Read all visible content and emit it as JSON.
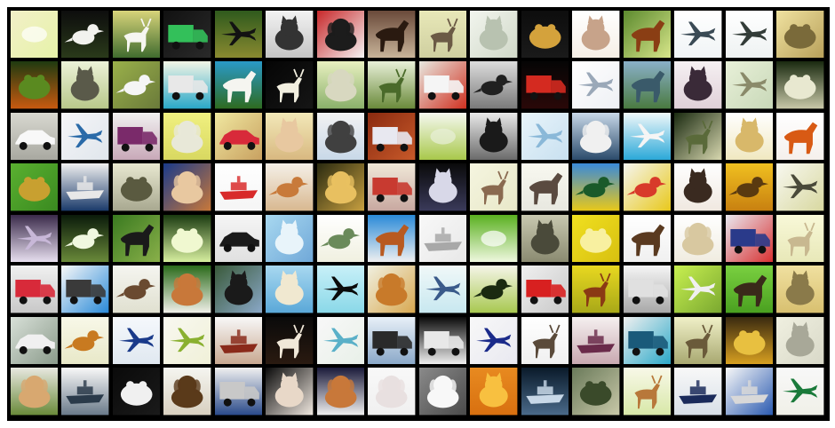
{
  "figure": {
    "grid_rows": 8,
    "grid_cols": 16,
    "border_color": "#000000",
    "background_color": "#ffffff"
  },
  "tiles": [
    {
      "subject": "landscape",
      "bg": "#f2f0c8",
      "bg2": "#e6f2a8",
      "fg": "#ffffff"
    },
    {
      "subject": "bird",
      "bg": "#0d0d0d",
      "bg2": "#2a3a1a",
      "fg": "#f2f2ee"
    },
    {
      "subject": "deer",
      "bg": "#d8d47a",
      "bg2": "#3f6b2e",
      "fg": "#f6f6f0"
    },
    {
      "subject": "truck",
      "bg": "#111111",
      "bg2": "#2a2a2a",
      "fg": "#33c05a"
    },
    {
      "subject": "airplane",
      "bg": "#2f5a1d",
      "bg2": "#8a8a30",
      "fg": "#121212"
    },
    {
      "subject": "cat",
      "bg": "#f2f2f2",
      "bg2": "#c4c4c4",
      "fg": "#333333"
    },
    {
      "subject": "dog",
      "bg": "#c8282a",
      "bg2": "#f5f5f5",
      "fg": "#1c1c1c"
    },
    {
      "subject": "horse",
      "bg": "#6a4a3a",
      "bg2": "#c9b59a",
      "fg": "#2a1a10"
    },
    {
      "subject": "deer",
      "bg": "#e8e8b8",
      "bg2": "#cfcfa0",
      "fg": "#6b5a45"
    },
    {
      "subject": "cat",
      "bg": "#f2f5ee",
      "bg2": "#d0d8c8",
      "fg": "#b8c2b0"
    },
    {
      "subject": "frog",
      "bg": "#0d0d0d",
      "bg2": "#1a1a1a",
      "fg": "#d4a23c"
    },
    {
      "subject": "cat",
      "bg": "#ffffff",
      "bg2": "#f6efe6",
      "fg": "#c7a38a"
    },
    {
      "subject": "horse",
      "bg": "#5c8a2e",
      "bg2": "#d8e68a",
      "fg": "#8a3e14"
    },
    {
      "subject": "airplane",
      "bg": "#ffffff",
      "bg2": "#f0f4f6",
      "fg": "#3a4a55"
    },
    {
      "subject": "airplane",
      "bg": "#ffffff",
      "bg2": "#eef2f2",
      "fg": "#333c38"
    },
    {
      "subject": "frog",
      "bg": "#f0e2a0",
      "bg2": "#b8a05a",
      "fg": "#7a6a3a"
    },
    {
      "subject": "frog",
      "bg": "#1f3a10",
      "bg2": "#c85a10",
      "fg": "#5a8a20"
    },
    {
      "subject": "cat",
      "bg": "#ecf2d8",
      "bg2": "#b8c88a",
      "fg": "#5a5a4a"
    },
    {
      "subject": "bird",
      "bg": "#9ab04a",
      "bg2": "#6a7a3a",
      "fg": "#f5f5f5"
    },
    {
      "subject": "truck",
      "bg": "#f2f5e6",
      "bg2": "#2aa8c8",
      "fg": "#e8e8e8"
    },
    {
      "subject": "horse",
      "bg": "#2a9ac8",
      "bg2": "#2e6b20",
      "fg": "#f5f5f0"
    },
    {
      "subject": "deer",
      "bg": "#050505",
      "bg2": "#151515",
      "fg": "#f2efe0"
    },
    {
      "subject": "dog",
      "bg": "#e8f0c0",
      "bg2": "#8ab06a",
      "fg": "#d8d8c0"
    },
    {
      "subject": "deer",
      "bg": "#e8f0d8",
      "bg2": "#6a8a3a",
      "fg": "#4a6a2a"
    },
    {
      "subject": "truck",
      "bg": "#e8e8e0",
      "bg2": "#d03020",
      "fg": "#f5f5f5"
    },
    {
      "subject": "bird",
      "bg": "#dcdcdc",
      "bg2": "#7a7a7a",
      "fg": "#202020"
    },
    {
      "subject": "truck",
      "bg": "#050505",
      "bg2": "#2a0808",
      "fg": "#d42a20"
    },
    {
      "subject": "airplane",
      "bg": "#ffffff",
      "bg2": "#eef0f4",
      "fg": "#9aa8b8"
    },
    {
      "subject": "horse",
      "bg": "#8ab0c8",
      "bg2": "#4a7a40",
      "fg": "#3a5a6a"
    },
    {
      "subject": "cat",
      "bg": "#f5f0f2",
      "bg2": "#e0d0d8",
      "fg": "#3a2a38"
    },
    {
      "subject": "airplane",
      "bg": "#e8f0d8",
      "bg2": "#c8d8b8",
      "fg": "#8a8a6a"
    },
    {
      "subject": "frog",
      "bg": "#1a2a10",
      "bg2": "#c8c8a8",
      "fg": "#e8e8d0"
    },
    {
      "subject": "automobile",
      "bg": "#d8d8d0",
      "bg2": "#a8a8a0",
      "fg": "#f8f8f8"
    },
    {
      "subject": "airplane",
      "bg": "#f5f5f8",
      "bg2": "#e0e6ec",
      "fg": "#2a6aa8"
    },
    {
      "subject": "truck",
      "bg": "#f0f0f0",
      "bg2": "#c8a8b8",
      "fg": "#7a2a6a"
    },
    {
      "subject": "dog",
      "bg": "#f0f080",
      "bg2": "#d8d860",
      "fg": "#e8e8d8"
    },
    {
      "subject": "automobile",
      "bg": "#f0e8a0",
      "bg2": "#c8a060",
      "fg": "#d82a3a"
    },
    {
      "subject": "cat",
      "bg": "#f2e8b8",
      "bg2": "#d8b880",
      "fg": "#e8c8a0"
    },
    {
      "subject": "dog",
      "bg": "#f2f2f2",
      "bg2": "#c8d8e8",
      "fg": "#404040"
    },
    {
      "subject": "truck",
      "bg": "#8a2a10",
      "bg2": "#c85a2a",
      "fg": "#e8e8f0"
    },
    {
      "subject": "landscape",
      "bg": "#f5f8f0",
      "bg2": "#a8c84a",
      "fg": "#e8f0d8"
    },
    {
      "subject": "cat",
      "bg": "#e8e8e8",
      "bg2": "#6a6a6a",
      "fg": "#1a1a1a"
    },
    {
      "subject": "airplane",
      "bg": "#e8f4fa",
      "bg2": "#c8e0f0",
      "fg": "#8ab8d8"
    },
    {
      "subject": "dog",
      "bg": "#c8d8e8",
      "bg2": "#2a4a6a",
      "fg": "#f0f0f0"
    },
    {
      "subject": "airplane",
      "bg": "#f0f8fa",
      "bg2": "#2aa8d8",
      "fg": "#f5f5f5"
    },
    {
      "subject": "deer",
      "bg": "#1a2a10",
      "bg2": "#d8d8b0",
      "fg": "#5a6a3a"
    },
    {
      "subject": "cat",
      "bg": "#ffffff",
      "bg2": "#f0e8c0",
      "fg": "#d8b86a"
    },
    {
      "subject": "horse",
      "bg": "#ffffff",
      "bg2": "#f5f0ec",
      "fg": "#d85a14"
    },
    {
      "subject": "frog",
      "bg": "#5ab030",
      "bg2": "#3a8a20",
      "fg": "#c8a030"
    },
    {
      "subject": "ship",
      "bg": "#f0f0f0",
      "bg2": "#1a3a6a",
      "fg": "#e8e8e8"
    },
    {
      "subject": "frog",
      "bg": "#e8e8d0",
      "bg2": "#a8a890",
      "fg": "#5a5a40"
    },
    {
      "subject": "dog",
      "bg": "#1a3a8a",
      "bg2": "#c8783a",
      "fg": "#e8c8a0"
    },
    {
      "subject": "ship",
      "bg": "#ffffff",
      "bg2": "#f5f5f5",
      "fg": "#d82a2a"
    },
    {
      "subject": "bird",
      "bg": "#f5f0e8",
      "bg2": "#d8b890",
      "fg": "#c87a3a"
    },
    {
      "subject": "dog",
      "bg": "#2a2a10",
      "bg2": "#c8a040",
      "fg": "#e8c060"
    },
    {
      "subject": "truck",
      "bg": "#f0e8d8",
      "bg2": "#c8a8a0",
      "fg": "#c83a30"
    },
    {
      "subject": "cat",
      "bg": "#0a0a0a",
      "bg2": "#3a3a5a",
      "fg": "#d8d8e8"
    },
    {
      "subject": "deer",
      "bg": "#f5f5e0",
      "bg2": "#e8e8c8",
      "fg": "#8a6a50"
    },
    {
      "subject": "horse",
      "bg": "#f8f8f0",
      "bg2": "#e8e8e0",
      "fg": "#5a4a40"
    },
    {
      "subject": "bird",
      "bg": "#3a8ad8",
      "bg2": "#e8c81a",
      "fg": "#1a5a2a"
    },
    {
      "subject": "bird",
      "bg": "#f5f5f0",
      "bg2": "#e8c81a",
      "fg": "#d83a2a"
    },
    {
      "subject": "cat",
      "bg": "#ffffff",
      "bg2": "#f0e8e0",
      "fg": "#3a2a20"
    },
    {
      "subject": "bird",
      "bg": "#f0c020",
      "bg2": "#c88010",
      "fg": "#5a3a10"
    },
    {
      "subject": "airplane",
      "bg": "#f8f8f0",
      "bg2": "#d8d8a0",
      "fg": "#4a4a3a"
    },
    {
      "subject": "airplane",
      "bg": "#3a2a4a",
      "bg2": "#e8e0f0",
      "fg": "#c8b8d8"
    },
    {
      "subject": "bird",
      "bg": "#0a1a0a",
      "bg2": "#6a8a3a",
      "fg": "#f0f8e0"
    },
    {
      "subject": "horse",
      "bg": "#3a7a20",
      "bg2": "#8ab04a",
      "fg": "#1a1a1a"
    },
    {
      "subject": "frog",
      "bg": "#1a3a10",
      "bg2": "#d8f0a0",
      "fg": "#f0f8d0"
    },
    {
      "subject": "automobile",
      "bg": "#f5f5f5",
      "bg2": "#e0e0e0",
      "fg": "#1a1a1a"
    },
    {
      "subject": "cat",
      "bg": "#a8d8f0",
      "bg2": "#70a8d8",
      "fg": "#e8f4fa"
    },
    {
      "subject": "bird",
      "bg": "#ffffff",
      "bg2": "#f0f0e0",
      "fg": "#6a8a5a"
    },
    {
      "subject": "horse",
      "bg": "#2a8ad8",
      "bg2": "#f0f0f0",
      "fg": "#b85a20"
    },
    {
      "subject": "ship",
      "bg": "#f8f8f8",
      "bg2": "#e8e8e8",
      "fg": "#a8a8a8"
    },
    {
      "subject": "landscape",
      "bg": "#5ab020",
      "bg2": "#f0f8e0",
      "fg": "#ffffff"
    },
    {
      "subject": "cat",
      "bg": "#c8c8b0",
      "bg2": "#8a8a70",
      "fg": "#4a4a3a"
    },
    {
      "subject": "frog",
      "bg": "#f0e020",
      "bg2": "#d8c010",
      "fg": "#f8f0a0"
    },
    {
      "subject": "horse",
      "bg": "#ffffff",
      "bg2": "#f0f0f0",
      "fg": "#5a3a20"
    },
    {
      "subject": "dog",
      "bg": "#ffffff",
      "bg2": "#f0ece0",
      "fg": "#d8c8a0"
    },
    {
      "subject": "truck",
      "bg": "#e8e8f0",
      "bg2": "#d83030",
      "fg": "#2a3a8a"
    },
    {
      "subject": "deer",
      "bg": "#f8f8d8",
      "bg2": "#e8e8b8",
      "fg": "#c8b890"
    },
    {
      "subject": "truck",
      "bg": "#f0f0f0",
      "bg2": "#c8c8c8",
      "fg": "#d82a3a"
    },
    {
      "subject": "truck",
      "bg": "#f8f8f8",
      "bg2": "#2a8ad8",
      "fg": "#3a3a3a"
    },
    {
      "subject": "bird",
      "bg": "#f5f5f0",
      "bg2": "#e0e0d0",
      "fg": "#6a4a30"
    },
    {
      "subject": "dog",
      "bg": "#2a6a1a",
      "bg2": "#f0f0e8",
      "fg": "#c8783a"
    },
    {
      "subject": "cat",
      "bg": "#3a5a3a",
      "bg2": "#8aa8c8",
      "fg": "#1a1a1a"
    },
    {
      "subject": "cat",
      "bg": "#a8d8f0",
      "bg2": "#5aa8d8",
      "fg": "#f0e8d0"
    },
    {
      "subject": "airplane",
      "bg": "#c8f0f8",
      "bg2": "#8ad8e8",
      "fg": "#0a0a0a"
    },
    {
      "subject": "dog",
      "bg": "#f0f0e0",
      "bg2": "#d8a850",
      "fg": "#c87a2a"
    },
    {
      "subject": "airplane",
      "bg": "#f0f8f8",
      "bg2": "#c8e8f0",
      "fg": "#3a5a8a"
    },
    {
      "subject": "bird",
      "bg": "#f5f5e8",
      "bg2": "#a8c850",
      "fg": "#1a2a10"
    },
    {
      "subject": "truck",
      "bg": "#f0f0f0",
      "bg2": "#c8c8c8",
      "fg": "#d82020"
    },
    {
      "subject": "deer",
      "bg": "#e8d820",
      "bg2": "#a8a818",
      "fg": "#8a3a14"
    },
    {
      "subject": "truck",
      "bg": "#f5f5f5",
      "bg2": "#a8a8a8",
      "fg": "#e0e0e0"
    },
    {
      "subject": "airplane",
      "bg": "#c8f050",
      "bg2": "#7aa830",
      "fg": "#f0f0f0"
    },
    {
      "subject": "horse",
      "bg": "#7ad040",
      "bg2": "#4aa020",
      "fg": "#3a2a1a"
    },
    {
      "subject": "cat",
      "bg": "#f0e0a0",
      "bg2": "#d8c070",
      "fg": "#8a7a4a"
    },
    {
      "subject": "automobile",
      "bg": "#d8e0d8",
      "bg2": "#8a9a8a",
      "fg": "#f0f0f0"
    },
    {
      "subject": "bird",
      "bg": "#f8f8e8",
      "bg2": "#e8e8c8",
      "fg": "#c87a20"
    },
    {
      "subject": "airplane",
      "bg": "#f5f8fc",
      "bg2": "#e0e8f0",
      "fg": "#1a3a8a"
    },
    {
      "subject": "airplane",
      "bg": "#f8f8f0",
      "bg2": "#f0f0d8",
      "fg": "#8ab030"
    },
    {
      "subject": "ship",
      "bg": "#f8f8f8",
      "bg2": "#c8a890",
      "fg": "#8a2a1a"
    },
    {
      "subject": "deer",
      "bg": "#0a0a0a",
      "bg2": "#2a1a10",
      "fg": "#f0e8d8"
    },
    {
      "subject": "airplane",
      "bg": "#f8f8f8",
      "bg2": "#e8f0e8",
      "fg": "#5ab0c8"
    },
    {
      "subject": "truck",
      "bg": "#e8f0f8",
      "bg2": "#8aa8c8",
      "fg": "#2a2a2a"
    },
    {
      "subject": "truck",
      "bg": "#0a0a0a",
      "bg2": "#f0f0f0",
      "fg": "#e8e8e8"
    },
    {
      "subject": "airplane",
      "bg": "#f8f8f8",
      "bg2": "#e8e8f0",
      "fg": "#1a2a8a"
    },
    {
      "subject": "deer",
      "bg": "#ffffff",
      "bg2": "#f0f0f0",
      "fg": "#5a4a3a"
    },
    {
      "subject": "ship",
      "bg": "#f5f0f0",
      "bg2": "#c8a8b0",
      "fg": "#6a2a4a"
    },
    {
      "subject": "truck",
      "bg": "#f0f0f0",
      "bg2": "#2aa8c8",
      "fg": "#1a5a7a"
    },
    {
      "subject": "deer",
      "bg": "#f0f0c8",
      "bg2": "#a8a870",
      "fg": "#6a5a3a"
    },
    {
      "subject": "frog",
      "bg": "#3a2a10",
      "bg2": "#d8a020",
      "fg": "#e8c040"
    },
    {
      "subject": "cat",
      "bg": "#f0f0e0",
      "bg2": "#d8d8c8",
      "fg": "#a8a898"
    },
    {
      "subject": "dog",
      "bg": "#e8e8e0",
      "bg2": "#6a8a3a",
      "fg": "#d8a870"
    },
    {
      "subject": "ship",
      "bg": "#f8f8f8",
      "bg2": "#6a7a8a",
      "fg": "#2a3a4a"
    },
    {
      "subject": "frog",
      "bg": "#0a0a0a",
      "bg2": "#1a1a1a",
      "fg": "#f0f0f0"
    },
    {
      "subject": "dog",
      "bg": "#f5f5f0",
      "bg2": "#d8d0c0",
      "fg": "#5a3a1a"
    },
    {
      "subject": "truck",
      "bg": "#f0f0f0",
      "bg2": "#2a4a8a",
      "fg": "#c8c8c8"
    },
    {
      "subject": "cat",
      "bg": "#0a0a0a",
      "bg2": "#f0e8e0",
      "fg": "#e8d8c8"
    },
    {
      "subject": "dog",
      "bg": "#1a1a3a",
      "bg2": "#f0f0f0",
      "fg": "#c8783a"
    },
    {
      "subject": "dog",
      "bg": "#f8f8f8",
      "bg2": "#f0f0f0",
      "fg": "#e8e0e0"
    },
    {
      "subject": "dog",
      "bg": "#8a8a8a",
      "bg2": "#4a4a4a",
      "fg": "#f8f8f8"
    },
    {
      "subject": "cat",
      "bg": "#e88a20",
      "bg2": "#d87010",
      "fg": "#f8c040"
    },
    {
      "subject": "ship",
      "bg": "#0a1a2a",
      "bg2": "#4a6a8a",
      "fg": "#c8d8e8"
    },
    {
      "subject": "frog",
      "bg": "#6a7a5a",
      "bg2": "#c8c8a8",
      "fg": "#3a4a2a"
    },
    {
      "subject": "deer",
      "bg": "#f8f8e8",
      "bg2": "#d8e8a8",
      "fg": "#b8783a"
    },
    {
      "subject": "ship",
      "bg": "#f8f8f8",
      "bg2": "#d8e0e8",
      "fg": "#1a2a5a"
    },
    {
      "subject": "ship",
      "bg": "#f8f8f8",
      "bg2": "#2a5ab0",
      "fg": "#d8d8d8"
    },
    {
      "subject": "airplane",
      "bg": "#f8f8f8",
      "bg2": "#f0f0e8",
      "fg": "#1a7a3a"
    }
  ]
}
